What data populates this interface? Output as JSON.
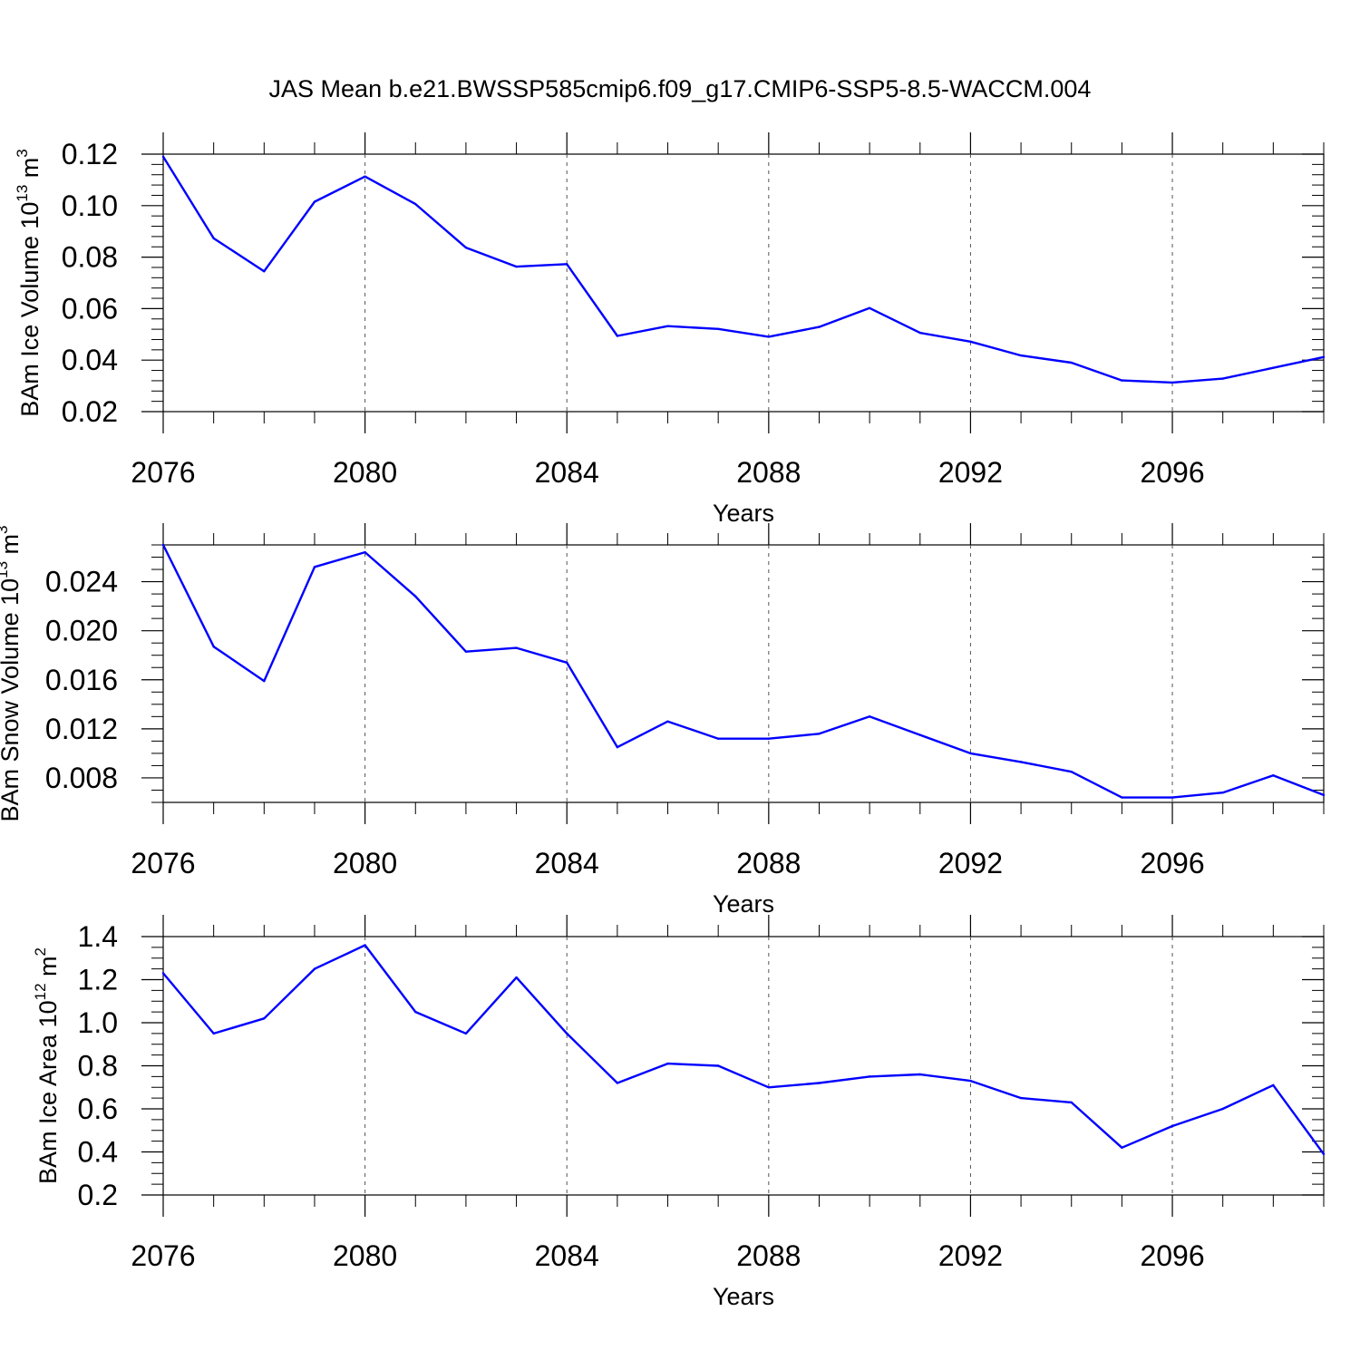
{
  "figure": {
    "title": "JAS Mean b.e21.BWSSP585cmip6.f09_g17.CMIP6-SSP5-8.5-WACCM.004"
  },
  "chart_data": [
    {
      "type": "line",
      "xlabel": "Years",
      "ylabel": {
        "text": "BAm Ice Volume 10",
        "exp": "13",
        "unit": " m",
        "unit_exp": "3"
      },
      "xlim": [
        2076,
        2099
      ],
      "ylim": [
        0.02,
        0.12
      ],
      "xticks": [
        2076,
        2080,
        2084,
        2088,
        2092,
        2096
      ],
      "xtick_labels": [
        "2076",
        "2080",
        "2084",
        "2088",
        "2092",
        "2096"
      ],
      "xminor_step": 1,
      "yticks": [
        0.02,
        0.04,
        0.06,
        0.08,
        0.1,
        0.12
      ],
      "ytick_labels": [
        "0.02",
        "0.04",
        "0.06",
        "0.08",
        "0.10",
        "0.12"
      ],
      "yminor_step": 0.004,
      "grid": "vertical dashed at major x ticks",
      "color": "#0000ff",
      "x": [
        2076,
        2077,
        2078,
        2079,
        2080,
        2081,
        2082,
        2083,
        2084,
        2085,
        2086,
        2087,
        2088,
        2089,
        2090,
        2091,
        2092,
        2093,
        2094,
        2095,
        2096,
        2097,
        2098,
        2099
      ],
      "values": [
        0.119,
        0.0873,
        0.0745,
        0.1015,
        0.1113,
        0.1006,
        0.0837,
        0.0763,
        0.0773,
        0.0494,
        0.0532,
        0.0521,
        0.0491,
        0.0529,
        0.0602,
        0.0506,
        0.0472,
        0.0418,
        0.039,
        0.0321,
        0.0313,
        0.0328,
        0.037,
        0.0412
      ]
    },
    {
      "type": "line",
      "xlabel": "Years",
      "ylabel": {
        "text": "BAm Snow Volume 10",
        "exp": "13",
        "unit": " m",
        "unit_exp": "3"
      },
      "xlim": [
        2076,
        2099
      ],
      "ylim": [
        0.006,
        0.027
      ],
      "xticks": [
        2076,
        2080,
        2084,
        2088,
        2092,
        2096
      ],
      "xtick_labels": [
        "2076",
        "2080",
        "2084",
        "2088",
        "2092",
        "2096"
      ],
      "xminor_step": 1,
      "yticks": [
        0.008,
        0.012,
        0.016,
        0.02,
        0.024
      ],
      "ytick_labels": [
        "0.008",
        "0.012",
        "0.016",
        "0.020",
        "0.024"
      ],
      "yminor_step": 0.001,
      "grid": "vertical dashed at major x ticks",
      "color": "#0000ff",
      "x": [
        2076,
        2077,
        2078,
        2079,
        2080,
        2081,
        2082,
        2083,
        2084,
        2085,
        2086,
        2087,
        2088,
        2089,
        2090,
        2091,
        2092,
        2093,
        2094,
        2095,
        2096,
        2097,
        2098,
        2099
      ],
      "values": [
        0.027,
        0.0187,
        0.0159,
        0.0252,
        0.0264,
        0.0228,
        0.0183,
        0.0186,
        0.0174,
        0.0105,
        0.0126,
        0.0112,
        0.0112,
        0.0116,
        0.013,
        0.0115,
        0.01,
        0.0093,
        0.0085,
        0.0064,
        0.0064,
        0.0068,
        0.0082,
        0.0066
      ]
    },
    {
      "type": "line",
      "xlabel": "Years",
      "ylabel": {
        "text": "BAm Ice Area 10",
        "exp": "12",
        "unit": " m",
        "unit_exp": "2"
      },
      "xlim": [
        2076,
        2099
      ],
      "ylim": [
        0.2,
        1.4
      ],
      "xticks": [
        2076,
        2080,
        2084,
        2088,
        2092,
        2096
      ],
      "xtick_labels": [
        "2076",
        "2080",
        "2084",
        "2088",
        "2092",
        "2096"
      ],
      "xminor_step": 1,
      "yticks": [
        0.2,
        0.4,
        0.6,
        0.8,
        1.0,
        1.2,
        1.4
      ],
      "ytick_labels": [
        "0.2",
        "0.4",
        "0.6",
        "0.8",
        "1.0",
        "1.2",
        "1.4"
      ],
      "yminor_step": 0.05,
      "grid": "vertical dashed at major x ticks",
      "color": "#0000ff",
      "x": [
        2076,
        2077,
        2078,
        2079,
        2080,
        2081,
        2082,
        2083,
        2084,
        2085,
        2086,
        2087,
        2088,
        2089,
        2090,
        2091,
        2092,
        2093,
        2094,
        2095,
        2096,
        2097,
        2098,
        2099
      ],
      "values": [
        1.23,
        0.95,
        1.02,
        1.25,
        1.36,
        1.05,
        0.95,
        1.21,
        0.95,
        0.72,
        0.81,
        0.8,
        0.7,
        0.72,
        0.75,
        0.76,
        0.73,
        0.65,
        0.63,
        0.42,
        0.52,
        0.6,
        0.71,
        0.39
      ]
    }
  ]
}
